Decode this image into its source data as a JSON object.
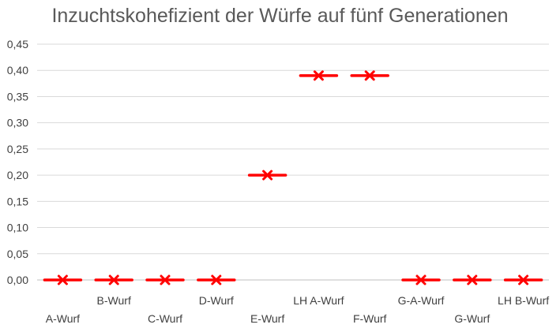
{
  "chart_data": {
    "type": "scatter",
    "title": "Inzuchtskohefizient der Würfe auf fünf Generationen",
    "xlabel": "",
    "ylabel": "",
    "categories": [
      "A-Wurf",
      "B-Wurf",
      "C-Wurf",
      "D-Wurf",
      "E-Wurf",
      "LH A-Wurf",
      "F-Wurf",
      "G-A-Wurf",
      "G-Wurf",
      "LH B-Wurf"
    ],
    "values": [
      0.0,
      0.0,
      0.0,
      0.0,
      0.2,
      0.39,
      0.39,
      0.0,
      0.0,
      0.0
    ],
    "ylim": [
      0,
      0.45
    ],
    "yticks": [
      0.0,
      0.05,
      0.1,
      0.15,
      0.2,
      0.25,
      0.3,
      0.35,
      0.4,
      0.45
    ],
    "ytick_labels": [
      "0,00",
      "0,05",
      "0,10",
      "0,15",
      "0,20",
      "0,25",
      "0,30",
      "0,35",
      "0,40",
      "0,45"
    ],
    "grid": true,
    "legend": "none",
    "marker": "x",
    "marker_color": "#ff0000"
  }
}
